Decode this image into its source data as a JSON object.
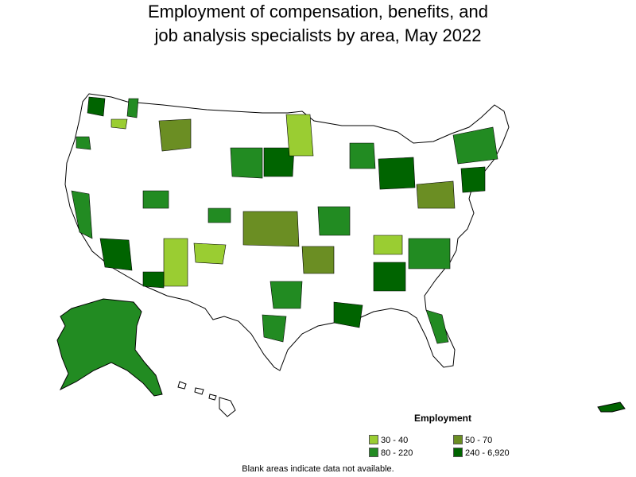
{
  "title": {
    "line1": "Employment of compensation, benefits, and",
    "line2": "job analysis specialists by area, May 2022"
  },
  "legend": {
    "title": "Employment",
    "items": [
      {
        "label": "30 - 40",
        "color": "#9acd32"
      },
      {
        "label": "50 - 70",
        "color": "#6b8e23"
      },
      {
        "label": "80 - 220",
        "color": "#228b22"
      },
      {
        "label": "240 - 6,920",
        "color": "#006400"
      }
    ]
  },
  "footnote": "Blank areas indicate data not available.",
  "colors": {
    "no_data": "#ffffff",
    "border": "#000000"
  }
}
